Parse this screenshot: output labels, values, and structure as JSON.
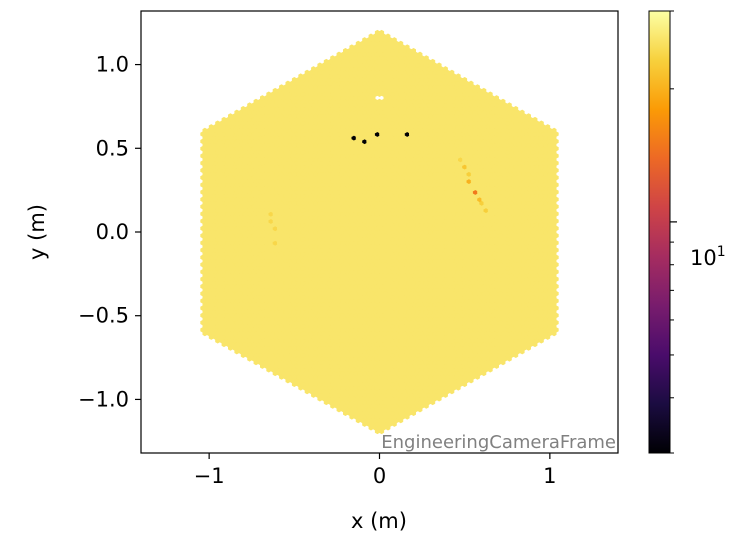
{
  "chart_data": {
    "type": "heatmap",
    "title": "",
    "subtitle": "",
    "xlabel": "x  (m)",
    "ylabel": "y  (m)",
    "xlim": [
      -1.4,
      1.4
    ],
    "ylim": [
      -1.32,
      1.32
    ],
    "x_ticks": [
      -1,
      0,
      1
    ],
    "x_tick_labels": [
      "−1",
      "0",
      "1"
    ],
    "y_ticks": [
      -1.0,
      -0.5,
      0.0,
      0.5,
      1.0
    ],
    "y_tick_labels": [
      "−1.0",
      "−0.5",
      "0.0",
      "0.5",
      "1.0"
    ],
    "grid": false,
    "annotation": "EngineeringCameraFrame",
    "camera_outline": "hexagon of hexagonal pixels",
    "camera_radius": 1.2,
    "pixel_pitch": 0.025,
    "background_value": 26,
    "colorbar": {
      "scale": "log",
      "colormap": "inferno",
      "range": [
        3,
        30
      ],
      "labeled_ticks": [
        10
      ],
      "tick_label_text": "10",
      "tick_label_exponent": "1",
      "colors": [
        "#000004",
        "#1b0c41",
        "#4a0c6b",
        "#781c6d",
        "#a52c60",
        "#cf4446",
        "#ed6925",
        "#fb9b06",
        "#f7d13d",
        "#fcffa4"
      ]
    },
    "hot_spots": [
      {
        "x": 0.56,
        "y": 0.25,
        "value": 15
      },
      {
        "x": 0.53,
        "y": 0.3,
        "value": 20
      },
      {
        "x": 0.58,
        "y": 0.2,
        "value": 21
      },
      {
        "x": 0.5,
        "y": 0.38,
        "value": 22
      },
      {
        "x": 0.62,
        "y": 0.14,
        "value": 23
      },
      {
        "x": 0.47,
        "y": 0.43,
        "value": 24
      },
      {
        "x": 0.6,
        "y": 0.16,
        "value": 23
      },
      {
        "x": 0.52,
        "y": 0.34,
        "value": 23
      },
      {
        "x": -0.63,
        "y": 0.1,
        "value": 24
      },
      {
        "x": -0.62,
        "y": 0.02,
        "value": 24
      },
      {
        "x": -0.61,
        "y": -0.06,
        "value": 24
      },
      {
        "x": -0.64,
        "y": 0.06,
        "value": 24
      }
    ],
    "dead_pixels": [
      {
        "x": -0.14,
        "y": 0.56,
        "value": 3
      },
      {
        "x": -0.09,
        "y": 0.55,
        "value": 3
      },
      {
        "x": -0.01,
        "y": 0.58,
        "value": 3
      },
      {
        "x": 0.17,
        "y": 0.59,
        "value": 3
      }
    ],
    "missing_pixels": [
      {
        "x": 0.0,
        "y": 0.8
      }
    ]
  }
}
